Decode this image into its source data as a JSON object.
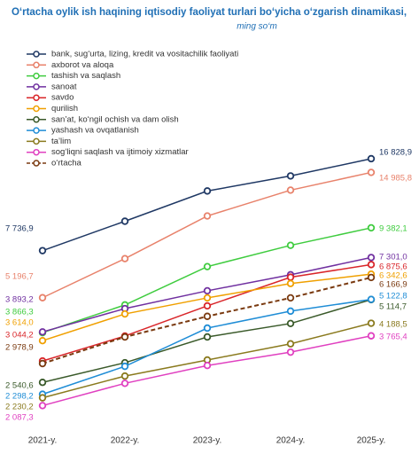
{
  "chart_data": {
    "type": "line",
    "title": "O‘rtacha oylik ish haqining iqtisodiy faoliyat turlari bo‘yicha o‘zgarish dinamikasi,",
    "subtitle": "ming so‘m",
    "log_scale": true,
    "ylim": [
      1900,
      18000
    ],
    "categories": [
      "2021-y.",
      "2022-y.",
      "2023-y.",
      "2024-y.",
      "2025-y."
    ],
    "series": [
      {
        "name": "bank, sug‘urta, lizing, kredit va vositachilik faoliyati",
        "color": "#1f3864",
        "values": [
          7736.9,
          9920,
          12810,
          14550,
          16828.9
        ],
        "value_labels": [
          "7 736,9",
          null,
          null,
          null,
          "16 828,9"
        ]
      },
      {
        "name": "axborot va aloqa",
        "color": "#e8826b",
        "values": [
          5196.7,
          7230,
          10370,
          12900,
          14985.8
        ],
        "value_labels": [
          "5 196,7",
          null,
          null,
          null,
          "14 985,8"
        ]
      },
      {
        "name": "tashish va saqlash",
        "color": "#3fcc3f",
        "values": [
          3866.3,
          4890,
          6760,
          8090,
          9382.1
        ],
        "value_labels": [
          "3 866,3",
          null,
          null,
          null,
          "9 382,1"
        ]
      },
      {
        "name": "sanoat",
        "color": "#7030a0",
        "values": [
          3893.2,
          4740,
          5510,
          6310,
          7301.0
        ],
        "value_labels": [
          "3 893,2",
          null,
          null,
          null,
          "7 301,0"
        ]
      },
      {
        "name": "savdo",
        "color": "#d9262a",
        "values": [
          3044.2,
          3760,
          4850,
          6180,
          6875.6
        ],
        "value_labels": [
          "3 044,2",
          null,
          null,
          null,
          "6 875,6"
        ]
      },
      {
        "name": "qurilish",
        "color": "#f0a000",
        "values": [
          3614.0,
          4530,
          5190,
          5860,
          6342.6
        ],
        "value_labels": [
          "3 614,0",
          null,
          null,
          null,
          "6 342,6"
        ]
      },
      {
        "name": "san’at, ko‘ngil ochish va dam olish",
        "color": "#3a5a2a",
        "values": [
          2540.6,
          3000,
          3730,
          4180,
          5114.7
        ],
        "value_labels": [
          "2 540,6",
          null,
          null,
          null,
          "5 114,7"
        ]
      },
      {
        "name": "yashash va ovqatlanish",
        "color": "#1f8dd6",
        "values": [
          2298.2,
          2910,
          4020,
          4640,
          5122.8
        ],
        "value_labels": [
          "2 298,2",
          null,
          null,
          null,
          "5 122,8"
        ]
      },
      {
        "name": "ta’lim",
        "color": "#8a7a1e",
        "values": [
          2230.2,
          2680,
          3070,
          3520,
          4188.5
        ],
        "value_labels": [
          "2 230,2",
          null,
          null,
          null,
          "4 188,5"
        ]
      },
      {
        "name": "sog‘liqni saqlash va ijtimoiy xizmatlar",
        "color": "#e040c0",
        "values": [
          2087.3,
          2520,
          2930,
          3280,
          3765.4
        ],
        "value_labels": [
          "2 087,3",
          null,
          null,
          null,
          "3 765,4"
        ]
      },
      {
        "name": "o‘rtacha",
        "color": "#7a3a10",
        "dashed": true,
        "values": [
          2978.9,
          3730,
          4440,
          5190,
          6166.9
        ],
        "value_labels": [
          "2 978,9",
          null,
          null,
          null,
          "6 166,9"
        ]
      }
    ]
  }
}
